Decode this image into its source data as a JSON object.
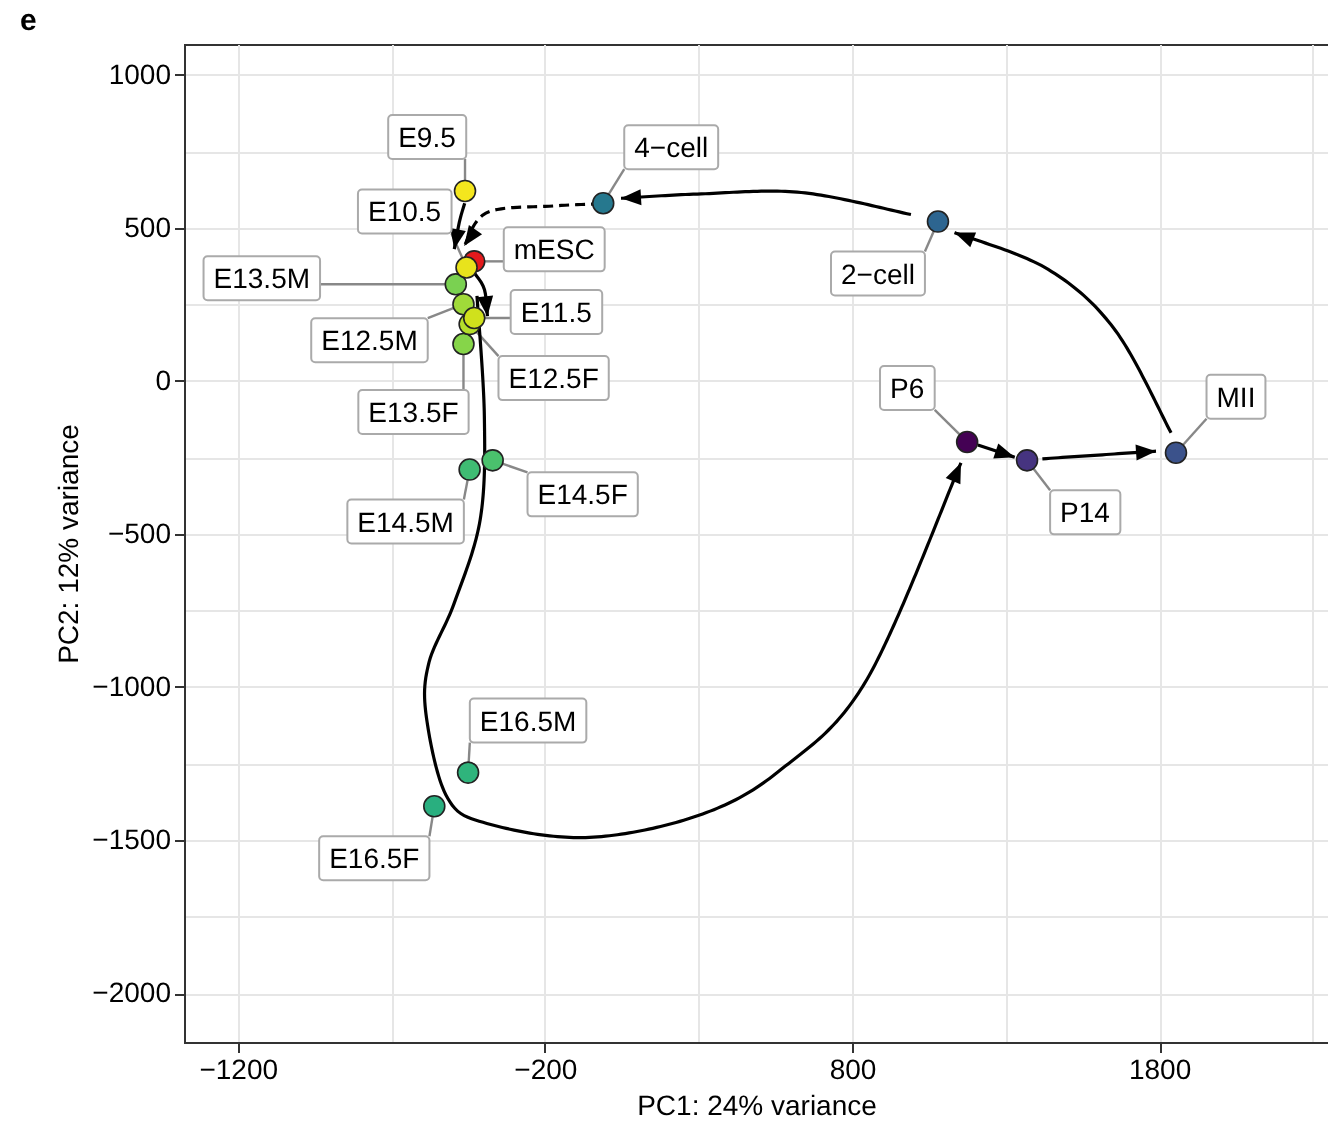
{
  "chart_data": {
    "type": "scatter",
    "title": "e",
    "xlabel": "PC1: 24% variance",
    "ylabel": "PC2: 12% variance",
    "xlim": [
      -1375,
      2350
    ],
    "ylim": [
      -2160,
      1100
    ],
    "xticks": [
      -1200,
      {
        "value": -700,
        "label": null
      },
      -200,
      {
        "value": 300,
        "label": null
      },
      800,
      {
        "value": 1300,
        "label": null
      },
      1800,
      {
        "value": 2300,
        "label": null
      }
    ],
    "yticks": [
      -2000,
      {
        "value": -1750,
        "label": null
      },
      -1500,
      {
        "value": -1250,
        "label": null
      },
      -1000,
      {
        "value": -750,
        "label": null
      },
      -500,
      {
        "value": -250,
        "label": null
      },
      0,
      {
        "value": 250,
        "label": null
      },
      500,
      {
        "value": 750,
        "label": null
      },
      1000
    ],
    "grid": true,
    "legend": false,
    "marker": "circle",
    "series": [
      {
        "name": "E9.5",
        "color": "#f4e61e",
        "x": [
          -460
        ],
        "values": [
          620
        ]
      },
      {
        "name": "4−cell",
        "color": "#26788e",
        "x": [
          -10
        ],
        "values": [
          580
        ]
      },
      {
        "name": "2−cell",
        "color": "#2d6590",
        "x": [
          1080
        ],
        "values": [
          520
        ]
      },
      {
        "name": "E10.5",
        "color": "#e8e31c",
        "x": [
          -455
        ],
        "values": [
          370
        ]
      },
      {
        "name": "mESC",
        "color": "#e31a1c",
        "x": [
          -430
        ],
        "values": [
          390
        ]
      },
      {
        "name": "E13.5M",
        "color": "#7ad151",
        "x": [
          -490
        ],
        "values": [
          315
        ]
      },
      {
        "name": "E11.5",
        "color": "#d0e11c",
        "x": [
          -430
        ],
        "values": [
          205
        ]
      },
      {
        "name": "E12.5M",
        "color": "#a0da39",
        "x": [
          -465
        ],
        "values": [
          250
        ]
      },
      {
        "name": "E12.5F",
        "color": "#b5de2b",
        "x": [
          -445
        ],
        "values": [
          185
        ]
      },
      {
        "name": "E13.5F",
        "color": "#86d549",
        "x": [
          -465
        ],
        "values": [
          120
        ]
      },
      {
        "name": "E14.5M",
        "color": "#3fbc73",
        "x": [
          -445
        ],
        "values": [
          -290
        ]
      },
      {
        "name": "E14.5F",
        "color": "#4ac16d",
        "x": [
          -370
        ],
        "values": [
          -260
        ]
      },
      {
        "name": "E16.5M",
        "color": "#2fb47c",
        "x": [
          -450
        ],
        "values": [
          -1280
        ]
      },
      {
        "name": "E16.5F",
        "color": "#29af7f",
        "x": [
          -560
        ],
        "values": [
          -1390
        ]
      },
      {
        "name": "P6",
        "color": "#440154",
        "x": [
          1175
        ],
        "values": [
          -200
        ]
      },
      {
        "name": "P14",
        "color": "#463480",
        "x": [
          1370
        ],
        "values": [
          -260
        ]
      },
      {
        "name": "MII",
        "color": "#3b528b",
        "x": [
          1855
        ],
        "values": [
          -235
        ]
      }
    ]
  }
}
